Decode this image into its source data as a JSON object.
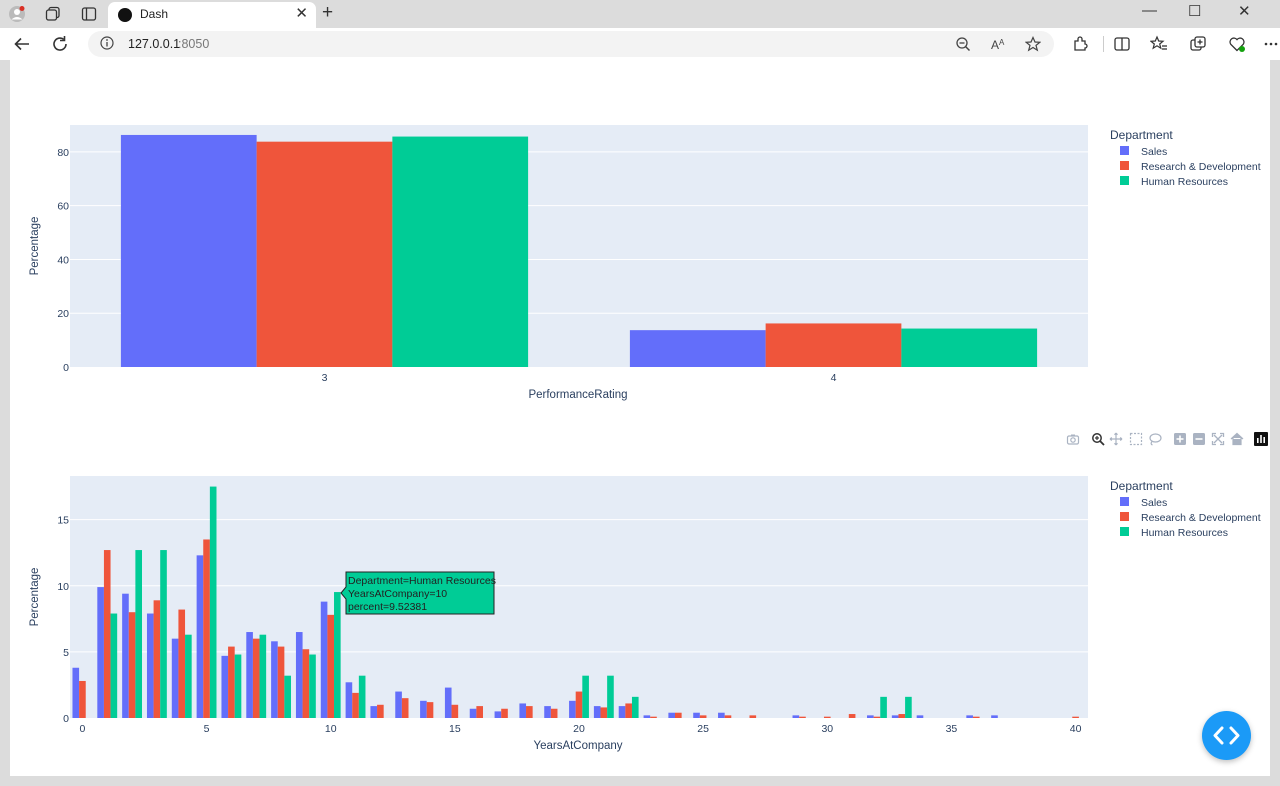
{
  "browser": {
    "tab_title": "Dash",
    "url_host": "127.0.0.1",
    "url_port": ":8050",
    "new_tab": "+",
    "tab_close": "✕",
    "win_min": "—",
    "win_max": "☐",
    "win_close": "✕"
  },
  "colors": {
    "sales": "#636efa",
    "rd": "#ef553b",
    "hr": "#00cc96",
    "plot_bg": "#e5ecf6",
    "fab": "#1b9af7"
  },
  "chart_data": [
    {
      "type": "bar",
      "xlabel": "PerformanceRating",
      "ylabel": "Percentage",
      "categories": [
        "3",
        "4"
      ],
      "ylim": [
        0,
        90
      ],
      "yticks": [
        0,
        20,
        40,
        60,
        80
      ],
      "grid": true,
      "legend_title": "Department",
      "legend_position": "right",
      "series": [
        {
          "name": "Sales",
          "values": [
            86.3,
            13.7
          ]
        },
        {
          "name": "Research & Development",
          "values": [
            83.8,
            16.2
          ]
        },
        {
          "name": "Human Resources",
          "values": [
            85.7,
            14.3
          ]
        }
      ]
    },
    {
      "type": "bar",
      "xlabel": "YearsAtCompany",
      "ylabel": "Percentage",
      "xlim": [
        -0.5,
        40.5
      ],
      "xticks": [
        0,
        5,
        10,
        15,
        20,
        25,
        30,
        35,
        40
      ],
      "ylim": [
        0,
        18.3
      ],
      "yticks": [
        0,
        5,
        10,
        15
      ],
      "grid": true,
      "legend_title": "Department",
      "legend_position": "right",
      "series": [
        {
          "name": "Sales",
          "points": [
            [
              0,
              3.8
            ],
            [
              1,
              9.9
            ],
            [
              2,
              9.4
            ],
            [
              3,
              7.9
            ],
            [
              4,
              6.0
            ],
            [
              5,
              12.3
            ],
            [
              6,
              4.7
            ],
            [
              7,
              6.5
            ],
            [
              8,
              5.8
            ],
            [
              9,
              6.5
            ],
            [
              10,
              8.8
            ],
            [
              11,
              2.7
            ],
            [
              12,
              0.9
            ],
            [
              13,
              2.0
            ],
            [
              14,
              1.3
            ],
            [
              15,
              2.3
            ],
            [
              16,
              0.7
            ],
            [
              17,
              0.5
            ],
            [
              18,
              1.1
            ],
            [
              19,
              0.9
            ],
            [
              20,
              1.3
            ],
            [
              21,
              0.9
            ],
            [
              22,
              0.9
            ],
            [
              23,
              0.2
            ],
            [
              24,
              0.4
            ],
            [
              25,
              0.4
            ],
            [
              26,
              0.4
            ],
            [
              29,
              0.2
            ],
            [
              32,
              0.2
            ],
            [
              33,
              0.2
            ],
            [
              34,
              0.2
            ],
            [
              36,
              0.2
            ],
            [
              37,
              0.2
            ]
          ]
        },
        {
          "name": "Research & Development",
          "points": [
            [
              0,
              2.8
            ],
            [
              1,
              12.7
            ],
            [
              2,
              8.0
            ],
            [
              3,
              8.9
            ],
            [
              4,
              8.2
            ],
            [
              5,
              13.5
            ],
            [
              6,
              5.4
            ],
            [
              7,
              6.0
            ],
            [
              8,
              5.4
            ],
            [
              9,
              5.2
            ],
            [
              10,
              7.8
            ],
            [
              11,
              1.9
            ],
            [
              12,
              1.0
            ],
            [
              13,
              1.5
            ],
            [
              14,
              1.2
            ],
            [
              15,
              1.0
            ],
            [
              16,
              0.9
            ],
            [
              17,
              0.7
            ],
            [
              18,
              0.9
            ],
            [
              19,
              0.7
            ],
            [
              20,
              2.0
            ],
            [
              21,
              0.8
            ],
            [
              22,
              1.1
            ],
            [
              23,
              0.1
            ],
            [
              24,
              0.4
            ],
            [
              25,
              0.2
            ],
            [
              26,
              0.2
            ],
            [
              27,
              0.2
            ],
            [
              29,
              0.1
            ],
            [
              30,
              0.1
            ],
            [
              31,
              0.3
            ],
            [
              32,
              0.1
            ],
            [
              33,
              0.3
            ],
            [
              36,
              0.1
            ],
            [
              40,
              0.1
            ]
          ]
        },
        {
          "name": "Human Resources",
          "points": [
            [
              1,
              7.9
            ],
            [
              2,
              12.7
            ],
            [
              3,
              12.7
            ],
            [
              4,
              6.3
            ],
            [
              5,
              17.5
            ],
            [
              6,
              4.8
            ],
            [
              7,
              6.3
            ],
            [
              8,
              3.2
            ],
            [
              9,
              4.8
            ],
            [
              10,
              9.52381
            ],
            [
              11,
              3.2
            ],
            [
              20,
              3.2
            ],
            [
              21,
              3.2
            ],
            [
              22,
              1.6
            ],
            [
              32,
              1.6
            ],
            [
              33,
              1.6
            ]
          ]
        }
      ],
      "hover_label": {
        "line1": "Department=Human Resources",
        "line2": "YearsAtCompany=10",
        "line3": "percent=9.52381"
      }
    }
  ]
}
